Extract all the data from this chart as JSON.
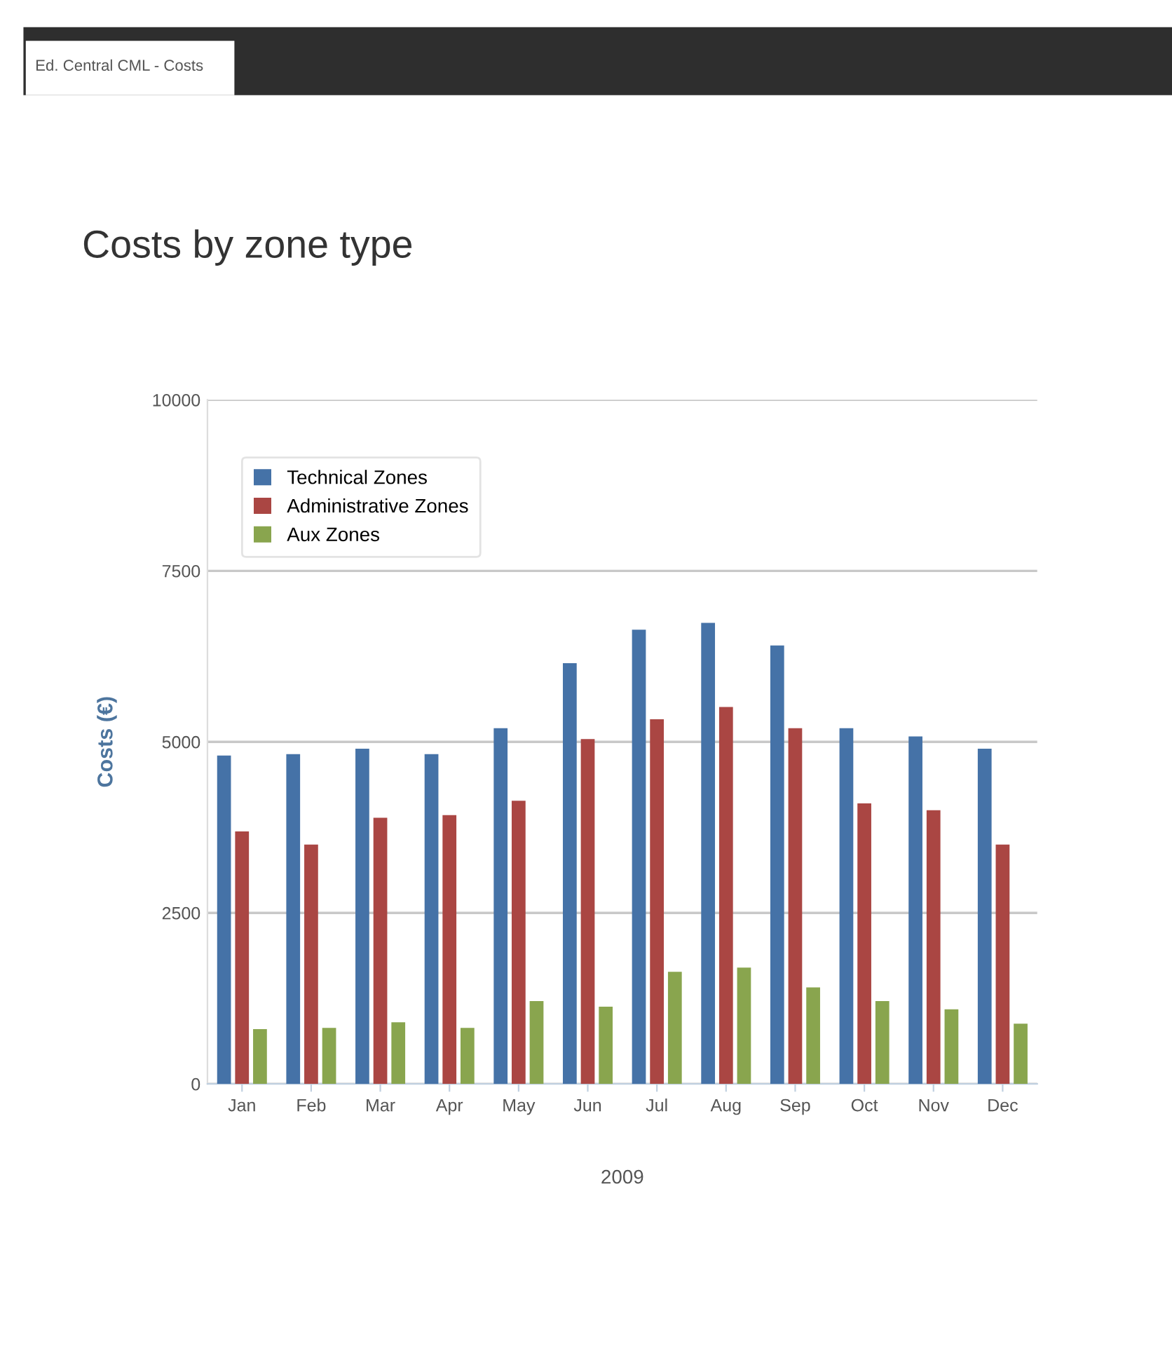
{
  "chart_data": {
    "type": "bar",
    "title": "Costs by zone type",
    "xlabel": "2009",
    "ylabel": "Costs (€)",
    "annotations": [
      "Ed. Central CML - Costs"
    ],
    "categories": [
      "Jan",
      "Feb",
      "Mar",
      "Apr",
      "May",
      "Jun",
      "Jul",
      "Aug",
      "Sep",
      "Oct",
      "Nov",
      "Dec"
    ],
    "series": [
      {
        "name": "Technical Zones",
        "color": "#4572a7",
        "values": [
          4800,
          4820,
          4900,
          4820,
          5200,
          6150,
          6640,
          6740,
          6410,
          5200,
          5080,
          4900
        ]
      },
      {
        "name": "Administrative Zones",
        "color": "#aa4643",
        "values": [
          3690,
          3500,
          3890,
          3930,
          4140,
          5040,
          5330,
          5510,
          5200,
          4100,
          4000,
          3500
        ]
      },
      {
        "name": "Aux Zones",
        "color": "#89a54e",
        "values": [
          800,
          820,
          900,
          820,
          1210,
          1130,
          1640,
          1700,
          1410,
          1210,
          1090,
          880
        ]
      }
    ],
    "ylim": [
      0,
      10000
    ],
    "yticks": [
      0,
      2500,
      5000,
      7500,
      10000
    ],
    "grid": "y",
    "legend": "top left"
  }
}
